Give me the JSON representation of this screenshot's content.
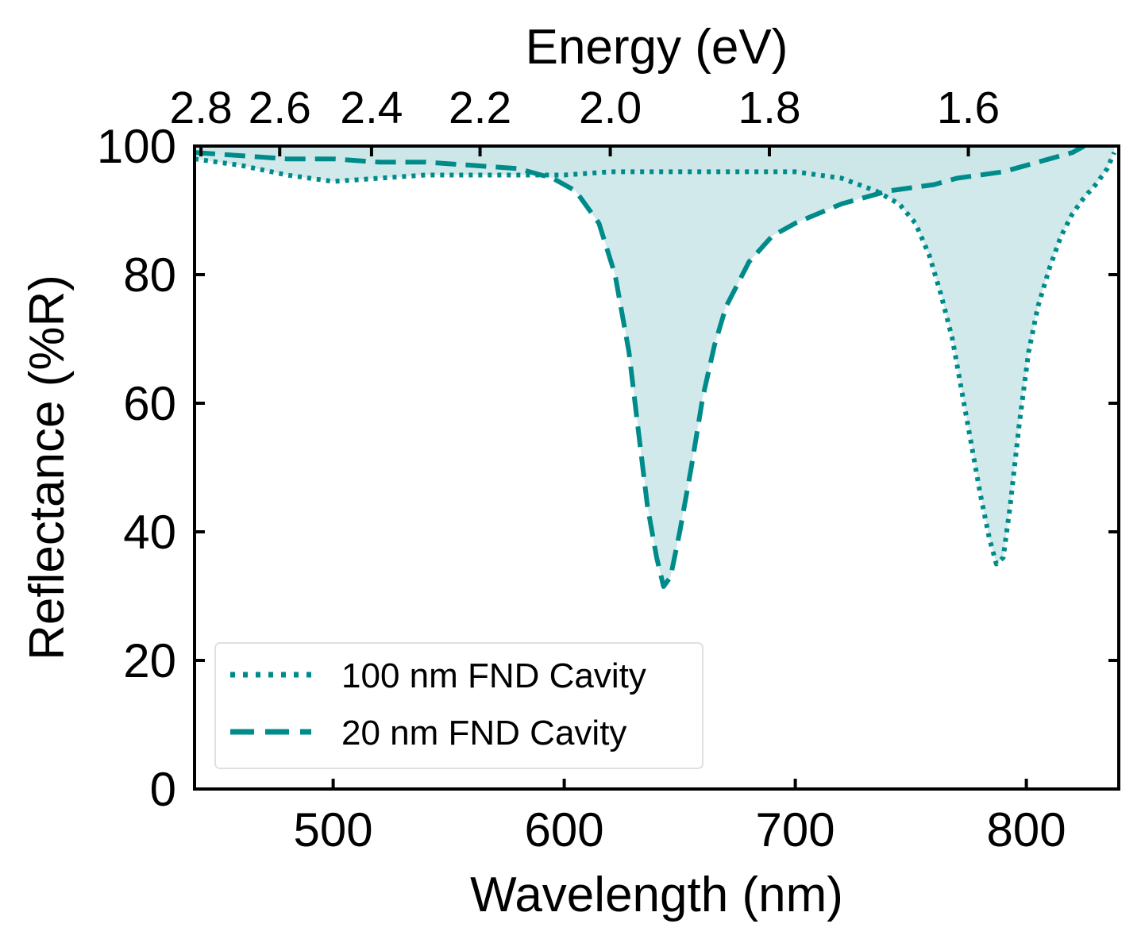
{
  "chart_data": {
    "type": "line",
    "xlabel": "Wavelength (nm)",
    "ylabel": "Reflectance (%R)",
    "top_xlabel": "Energy (eV)",
    "xlim": [
      440,
      840
    ],
    "ylim": [
      0,
      100
    ],
    "xticks": [
      500,
      600,
      700,
      800
    ],
    "yticks": [
      0,
      20,
      40,
      60,
      80,
      100
    ],
    "top_xticks_ev": [
      2.8,
      2.6,
      2.4,
      2.2,
      2.0,
      1.8,
      1.6
    ],
    "top_xtick_labels": [
      "2.8",
      "2.6",
      "2.4",
      "2.2",
      "2.0",
      "1.8",
      "1.6"
    ],
    "legend_position": "lower-left",
    "fill_color": "#cce7e8",
    "line_color": "#008b8b",
    "series": [
      {
        "name": "100 nm FND Cavity",
        "style": "dotted",
        "x": [
          440,
          460,
          480,
          500,
          520,
          540,
          560,
          580,
          600,
          620,
          640,
          660,
          680,
          700,
          720,
          735,
          745,
          752,
          758,
          763,
          768,
          772,
          776,
          780,
          784,
          787,
          790,
          793,
          797,
          801,
          805,
          810,
          815,
          820,
          825,
          830,
          835,
          838
        ],
        "y": [
          98,
          97,
          95.5,
          94.5,
          95,
          95.5,
          95.5,
          95.5,
          95.5,
          96,
          96,
          96,
          96,
          96,
          95,
          93,
          91,
          88,
          83,
          77,
          70,
          62,
          54,
          46,
          39,
          35,
          36,
          44,
          57,
          68,
          75,
          81,
          86,
          89.5,
          92,
          94,
          96.5,
          99
        ]
      },
      {
        "name": "20 nm FND Cavity",
        "style": "dashed",
        "x": [
          440,
          460,
          480,
          500,
          520,
          540,
          560,
          580,
          595,
          605,
          615,
          622,
          628,
          632,
          636,
          640,
          643,
          646,
          650,
          655,
          660,
          665,
          670,
          680,
          690,
          700,
          710,
          720,
          730,
          740,
          750,
          760,
          770,
          780,
          790,
          800,
          810,
          820,
          825
        ],
        "y": [
          99,
          98.5,
          98,
          98,
          97.5,
          97.5,
          97,
          96.5,
          95,
          93,
          88,
          80,
          68,
          56,
          44,
          36,
          31.5,
          33,
          40,
          50,
          61,
          69,
          75,
          82,
          86,
          88,
          89.5,
          91,
          92,
          93,
          93.5,
          94,
          95,
          95.5,
          96,
          97,
          98,
          99,
          100
        ]
      }
    ]
  }
}
